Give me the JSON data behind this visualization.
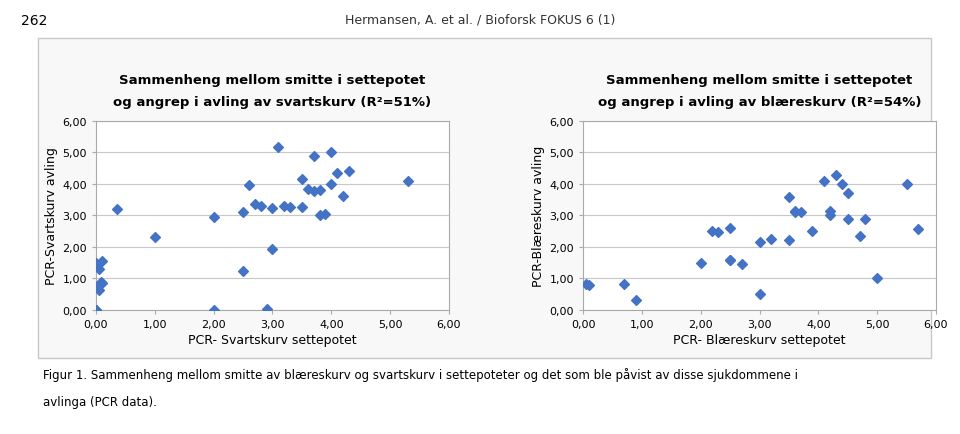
{
  "header_text_normal": "Hermansen, A. ",
  "header_text_italic": "et al.",
  "header_text_after": " / ",
  "header_text_journal": "Bioforsk FOKUS",
  "header_text_end": " 6 (1)",
  "page_num": "262",
  "title1_line1": "Sammenheng mellom smitte i settepotet",
  "title1_line2": "og angrep i avling av svartskurv (R²=51%)",
  "title2_line1": "Sammenheng mellom smitte i settepotet",
  "title2_line2": "og angrep i avling av blæreskurv (R²=54%)",
  "xlabel1": "PCR- Svartskurv settepotet",
  "ylabel1": "PCR-Svartskurv avling",
  "xlabel2": "PCR- Blæreskurv settepotet",
  "ylabel2": "PCR-Blæreskurv avling",
  "xlim": [
    0,
    6
  ],
  "ylim": [
    0,
    6
  ],
  "xticks": [
    0.0,
    1.0,
    2.0,
    3.0,
    4.0,
    5.0,
    6.0
  ],
  "yticks": [
    0.0,
    1.0,
    2.0,
    3.0,
    4.0,
    5.0,
    6.0
  ],
  "xticklabels": [
    "0,00",
    "1,00",
    "2,00",
    "3,00",
    "4,00",
    "5,00",
    "6,00"
  ],
  "yticklabels": [
    "0,00",
    "1,00",
    "2,00",
    "3,00",
    "4,00",
    "5,00",
    "6,00"
  ],
  "marker_color": "#4472C4",
  "marker": "D",
  "marker_size": 5,
  "scatter1_x": [
    0.0,
    0.0,
    0.0,
    0.0,
    0.05,
    0.05,
    0.05,
    0.08,
    0.1,
    0.1,
    0.35,
    1.0,
    2.0,
    2.0,
    2.5,
    2.5,
    2.6,
    2.7,
    2.8,
    2.9,
    3.0,
    3.0,
    3.1,
    3.2,
    3.3,
    3.5,
    3.5,
    3.6,
    3.7,
    3.7,
    3.8,
    3.8,
    3.9,
    4.0,
    4.0,
    4.1,
    4.2,
    4.3,
    5.3
  ],
  "scatter1_y": [
    0.0,
    0.0,
    0.0,
    1.5,
    0.65,
    0.8,
    1.3,
    0.9,
    0.85,
    1.55,
    3.2,
    2.32,
    0.0,
    2.95,
    1.25,
    3.1,
    3.95,
    3.35,
    3.3,
    0.02,
    1.93,
    3.25,
    5.17,
    3.3,
    3.27,
    3.27,
    4.15,
    3.85,
    3.78,
    4.87,
    3.8,
    3.0,
    3.05,
    4.0,
    5.0,
    4.35,
    3.6,
    4.42,
    4.1
  ],
  "scatter2_x": [
    0.05,
    0.1,
    0.7,
    0.9,
    2.0,
    2.2,
    2.3,
    2.5,
    2.5,
    2.5,
    2.7,
    3.0,
    3.0,
    3.2,
    3.5,
    3.5,
    3.6,
    3.6,
    3.7,
    3.9,
    4.1,
    4.2,
    4.2,
    4.3,
    4.4,
    4.5,
    4.5,
    4.7,
    4.8,
    5.0,
    5.5,
    5.7
  ],
  "scatter2_y": [
    0.83,
    0.8,
    0.82,
    0.33,
    1.48,
    2.5,
    2.48,
    1.6,
    1.6,
    2.6,
    1.45,
    0.5,
    2.15,
    2.25,
    3.57,
    2.22,
    3.12,
    3.13,
    3.1,
    2.5,
    4.1,
    3.13,
    3.0,
    4.28,
    4.0,
    2.9,
    3.7,
    2.35,
    2.9,
    1.0,
    4.0,
    2.58
  ],
  "footer_line1": "Figur 1. Sammenheng mellom smitte av blæreskurv og svartskurv i settepoteter og det som ble påvist av disse sjukdommene i",
  "footer_line2": "avlinga (PCR data).",
  "background_color": "#ffffff",
  "plot_bg_color": "#ffffff",
  "grid_color": "#c8c8c8",
  "box_color": "#aaaaaa",
  "outer_box_color": "#c8c8c8",
  "header_color_normal": "#333333",
  "header_color_journal": "#4472C4",
  "journal_fontsize": 9,
  "tick_fontsize": 8,
  "label_fontsize": 9,
  "title_fontsize": 9.5,
  "footer_fontsize": 8.5
}
